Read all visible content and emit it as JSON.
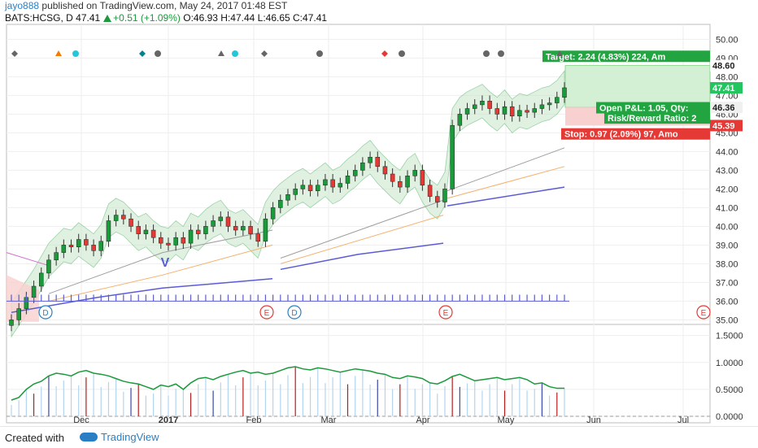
{
  "header": {
    "author": "jayo888",
    "published_text": "published on TradingView.com, May 24, 2017 01:48 EST",
    "symbol": "BATS:HCSG, D",
    "last": "47.41",
    "change": "+0.51 (+1.09%)",
    "ohlc": "O:46.93  H:47.44  L:46.65  C:47.41"
  },
  "footer": {
    "created_with": "Created with",
    "brand": "TradingView"
  },
  "colors": {
    "up": "#1a9a3b",
    "down": "#e53935",
    "band_fill": "#c8e6c9",
    "ma_blue": "#5b5bd6",
    "ma_orange": "#f5b06b",
    "ma_gray": "#9e9e9e",
    "target_fill": "#d4f0d4",
    "stop_fill": "#f9d0d0"
  },
  "chart_data": [
    {
      "type": "candlestick",
      "x_ticks": [
        "Dec",
        "2017",
        "Feb",
        "Mar",
        "Apr",
        "May",
        "Jun",
        "Jul"
      ],
      "y_ticks": [
        "35.00",
        "36.00",
        "37.00",
        "38.00",
        "39.00",
        "40.00",
        "41.00",
        "42.00",
        "43.00",
        "44.00",
        "45.00",
        "46.00",
        "47.00",
        "48.00",
        "49.00",
        "50.00"
      ],
      "ylim": [
        34.8,
        50.8
      ],
      "closes": [
        35.0,
        35.6,
        36.2,
        36.8,
        37.5,
        38.2,
        38.6,
        39.0,
        38.9,
        39.3,
        39.0,
        38.7,
        39.2,
        40.3,
        40.6,
        40.4,
        40.0,
        39.6,
        39.8,
        39.4,
        39.1,
        39.0,
        39.4,
        39.1,
        39.8,
        39.6,
        40.0,
        40.3,
        40.5,
        40.0,
        39.8,
        40.0,
        39.6,
        39.2,
        40.4,
        41.0,
        41.4,
        41.7,
        42.0,
        42.2,
        41.9,
        42.2,
        42.5,
        42.1,
        42.3,
        42.7,
        43.0,
        43.4,
        43.7,
        43.2,
        42.8,
        42.4,
        42.1,
        42.7,
        43.0,
        42.2,
        41.6,
        41.3,
        42.0,
        45.4,
        46.0,
        46.3,
        46.5,
        46.7,
        46.3,
        46.0,
        46.4,
        45.9,
        46.2,
        46.1,
        46.3,
        46.5,
        46.6,
        46.9,
        47.41
      ],
      "last_price_label": "47.41",
      "price_labels": [
        "48.60",
        "46.36",
        "45.39"
      ]
    },
    {
      "type": "line",
      "panel": "lower",
      "y_ticks": [
        "0.0000",
        "0.5000",
        "1.0000",
        "1.5000"
      ],
      "ylim": [
        0,
        1.6
      ],
      "values": [
        0.3,
        0.35,
        0.5,
        0.6,
        0.65,
        0.75,
        0.8,
        0.78,
        0.75,
        0.82,
        0.85,
        0.8,
        0.78,
        0.75,
        0.7,
        0.65,
        0.62,
        0.6,
        0.55,
        0.5,
        0.58,
        0.55,
        0.6,
        0.5,
        0.62,
        0.7,
        0.72,
        0.68,
        0.74,
        0.78,
        0.82,
        0.85,
        0.8,
        0.82,
        0.78,
        0.8,
        0.85,
        0.9,
        0.92,
        0.88,
        0.86,
        0.9,
        0.88,
        0.85,
        0.82,
        0.85,
        0.88,
        0.86,
        0.84,
        0.8,
        0.78,
        0.72,
        0.7,
        0.75,
        0.73,
        0.7,
        0.62,
        0.6,
        0.66,
        0.74,
        0.78,
        0.72,
        0.66,
        0.68,
        0.7,
        0.72,
        0.68,
        0.7,
        0.72,
        0.68,
        0.6,
        0.62,
        0.55,
        0.52,
        0.52
      ]
    }
  ],
  "position_tool": {
    "target": "Target: 2.24 (4.83%) 224, Am",
    "pnl": "Open P&L: 1.05, Qty:",
    "rr": "Risk/Reward Ratio: 2",
    "stop": "Stop: 0.97 (2.09%) 97, Amo"
  },
  "markers": {
    "earnings": "E",
    "dividend": "D",
    "v": "V"
  }
}
